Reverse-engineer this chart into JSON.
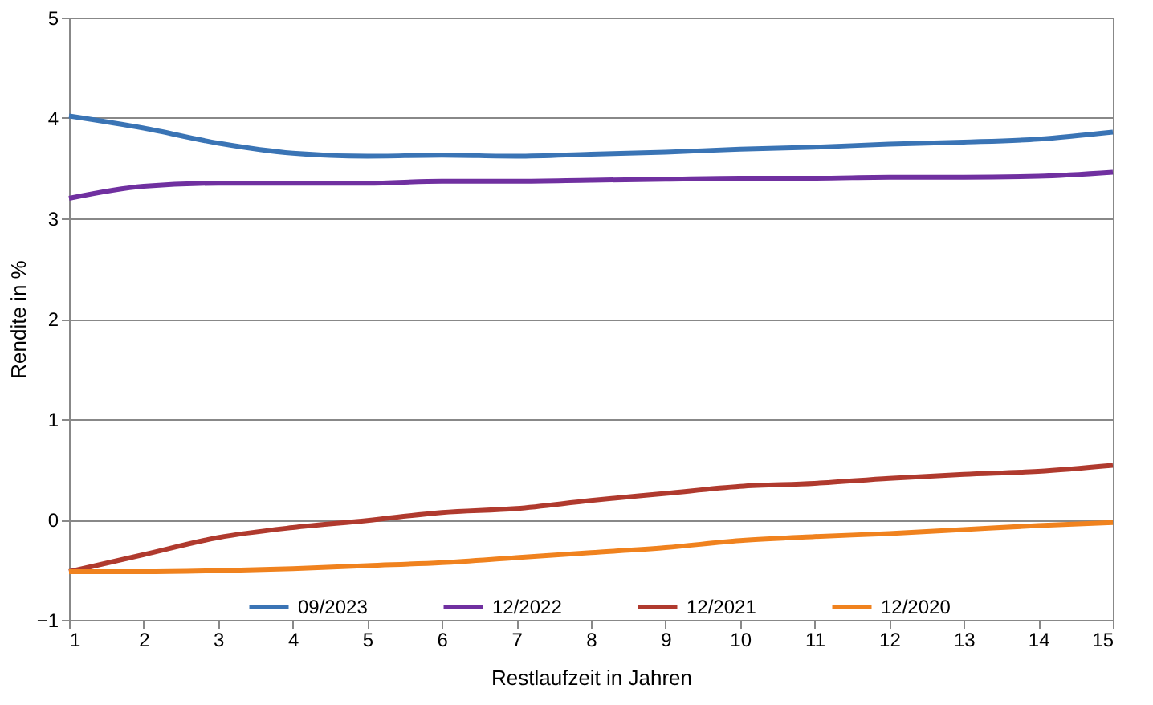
{
  "chart_data": {
    "type": "line",
    "xlabel": "Restlaufzeit in Jahren",
    "ylabel": "Rendite in %",
    "x": [
      1,
      2,
      3,
      4,
      5,
      6,
      7,
      8,
      9,
      10,
      11,
      12,
      13,
      14,
      15
    ],
    "series": [
      {
        "name": "09/2023",
        "color": "#3a74b5",
        "values": [
          4.02,
          3.9,
          3.75,
          3.65,
          3.62,
          3.63,
          3.62,
          3.64,
          3.66,
          3.69,
          3.71,
          3.74,
          3.76,
          3.79,
          3.86
        ]
      },
      {
        "name": "12/2022",
        "color": "#7030a0",
        "values": [
          3.2,
          3.32,
          3.35,
          3.35,
          3.35,
          3.37,
          3.37,
          3.38,
          3.39,
          3.4,
          3.4,
          3.41,
          3.41,
          3.42,
          3.46
        ]
      },
      {
        "name": "12/2021",
        "color": "#b03a2e",
        "values": [
          -0.52,
          -0.35,
          -0.18,
          -0.08,
          -0.01,
          0.07,
          0.11,
          0.19,
          0.26,
          0.33,
          0.36,
          0.41,
          0.45,
          0.48,
          0.54
        ]
      },
      {
        "name": "12/2020",
        "color": "#f0821e",
        "values": [
          -0.52,
          -0.52,
          -0.51,
          -0.49,
          -0.46,
          -0.43,
          -0.38,
          -0.33,
          -0.28,
          -0.21,
          -0.17,
          -0.14,
          -0.1,
          -0.06,
          -0.03
        ]
      }
    ],
    "xlim": [
      1,
      15
    ],
    "xticks": [
      1,
      2,
      3,
      4,
      5,
      6,
      7,
      8,
      9,
      10,
      11,
      12,
      13,
      14,
      15
    ],
    "ylim": [
      -1,
      5
    ],
    "yticks": [
      -1,
      0,
      1,
      2,
      3,
      4,
      5
    ],
    "grid": "y",
    "legend": "bottom",
    "marker": "none",
    "line_style": "solid"
  }
}
